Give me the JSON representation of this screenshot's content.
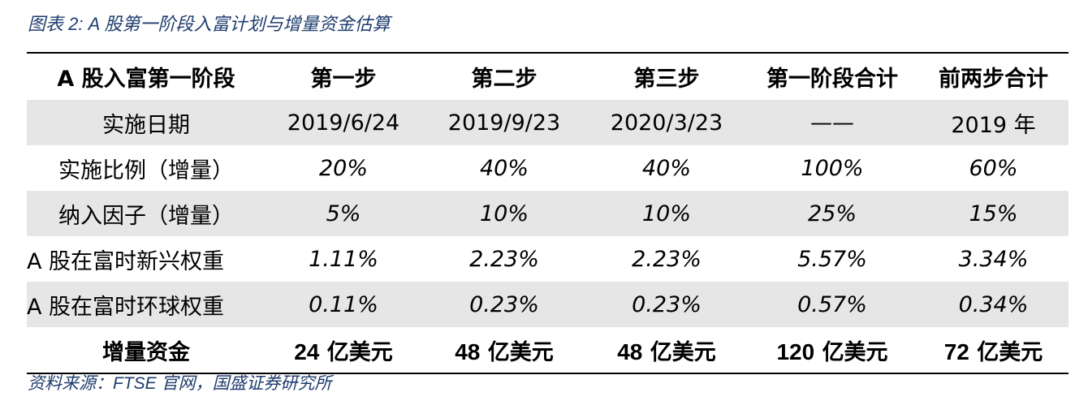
{
  "caption": "图表 2: A 股第一阶段入富计划与增量资金估算",
  "table": {
    "headers": [
      "A 股入富第一阶段",
      "第一步",
      "第二步",
      "第三步",
      "第一阶段合计",
      "前两步合计"
    ],
    "rows": [
      {
        "label": "实施日期",
        "values": [
          "2019/6/24",
          "2019/9/23",
          "2020/3/23",
          "——",
          "2019 年"
        ]
      },
      {
        "label": "实施比例（增量）",
        "values": [
          "20%",
          "40%",
          "40%",
          "100%",
          "60%"
        ]
      },
      {
        "label": "纳入因子（增量）",
        "values": [
          "5%",
          "10%",
          "10%",
          "25%",
          "15%"
        ]
      },
      {
        "label": "A 股在富时新兴权重",
        "values": [
          "1.11%",
          "2.23%",
          "2.23%",
          "5.57%",
          "3.34%"
        ]
      },
      {
        "label": "A 股在富时环球权重",
        "values": [
          "0.11%",
          "0.23%",
          "0.23%",
          "0.57%",
          "0.34%"
        ]
      }
    ],
    "total": {
      "label": "增量资金",
      "amounts": [
        "24",
        "48",
        "48",
        "120",
        "72"
      ],
      "unit": "亿美元"
    }
  },
  "source": "资料来源：FTSE 官网，国盛证券研究所"
}
